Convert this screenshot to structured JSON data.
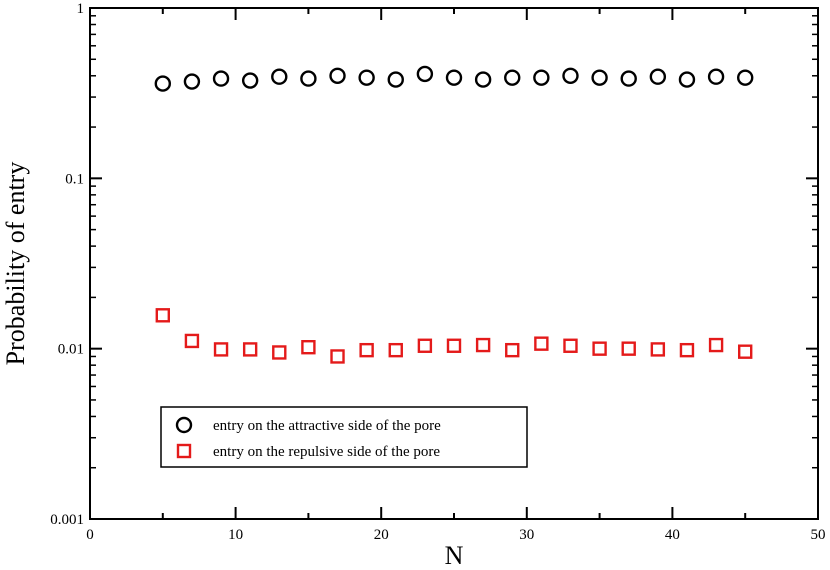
{
  "chart_data": {
    "type": "scatter",
    "title": "",
    "xlabel": "N",
    "ylabel": "Probability of entry",
    "xlim": [
      0,
      50
    ],
    "ylim": [
      0.001,
      1
    ],
    "yscale": "log",
    "grid": false,
    "legend_position": "lower-left",
    "x_ticks": [
      0,
      10,
      20,
      30,
      40,
      50
    ],
    "x_tick_labels": [
      "0",
      "10",
      "20",
      "30",
      "40",
      "50"
    ],
    "y_ticks": [
      0.001,
      0.01,
      0.1,
      1
    ],
    "y_tick_labels": [
      "0.001",
      "0.01",
      "0.1",
      "1"
    ],
    "series": [
      {
        "name": "entry on the attractive side of the pore",
        "marker": "circle",
        "color": "#000000",
        "x": [
          5,
          7,
          9,
          11,
          13,
          15,
          17,
          19,
          21,
          23,
          25,
          27,
          29,
          31,
          33,
          35,
          37,
          39,
          41,
          43,
          45
        ],
        "y": [
          0.36,
          0.37,
          0.385,
          0.375,
          0.395,
          0.385,
          0.4,
          0.39,
          0.38,
          0.41,
          0.39,
          0.38,
          0.39,
          0.39,
          0.4,
          0.39,
          0.385,
          0.395,
          0.38,
          0.395,
          0.39
        ]
      },
      {
        "name": "entry on the repulsive side of the pore",
        "marker": "square",
        "color": "#e41a1a",
        "x": [
          5,
          7,
          9,
          11,
          13,
          15,
          17,
          19,
          21,
          23,
          25,
          27,
          29,
          31,
          33,
          35,
          37,
          39,
          41,
          43,
          45
        ],
        "y": [
          0.0157,
          0.0111,
          0.0099,
          0.0099,
          0.0095,
          0.0102,
          0.009,
          0.0098,
          0.0098,
          0.0104,
          0.0104,
          0.0105,
          0.0098,
          0.0107,
          0.0104,
          0.01,
          0.01,
          0.0099,
          0.0098,
          0.0105,
          0.0096
        ]
      }
    ]
  }
}
